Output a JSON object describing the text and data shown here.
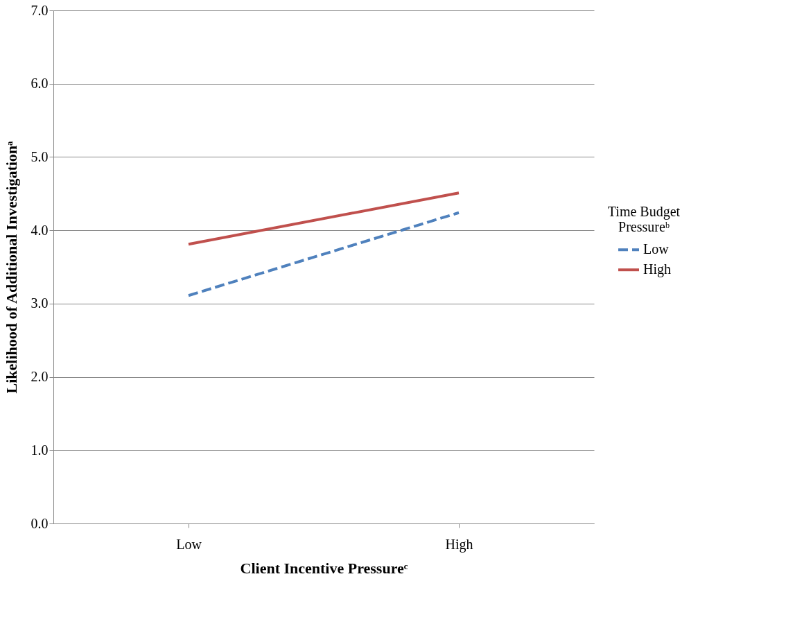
{
  "chart_data": {
    "type": "line",
    "xlabel": "Client Incentive Pressureᶜ",
    "ylabel": "Likelihood of Additional Investigationᵃ",
    "legend_title": "Time Budget Pressureᵇ",
    "categories": [
      "Low",
      "High"
    ],
    "series": [
      {
        "name": "Low",
        "color": "#4f81bd",
        "line_style": "dashed",
        "values": [
          3.11,
          4.24
        ]
      },
      {
        "name": "High",
        "color": "#c0504d",
        "line_style": "solid",
        "values": [
          3.81,
          4.51
        ]
      }
    ],
    "ylim": [
      0,
      7
    ],
    "yticks": [
      {
        "value": 0,
        "label": "0.0"
      },
      {
        "value": 1,
        "label": "1.0"
      },
      {
        "value": 2,
        "label": "2.0"
      },
      {
        "value": 3,
        "label": "3.0"
      },
      {
        "value": 4,
        "label": "4.0"
      },
      {
        "value": 5,
        "label": "5.0"
      },
      {
        "value": 6,
        "label": "6.0"
      },
      {
        "value": 7,
        "label": "7.0"
      }
    ],
    "grid": "y",
    "legend": "right",
    "marker": "none"
  }
}
